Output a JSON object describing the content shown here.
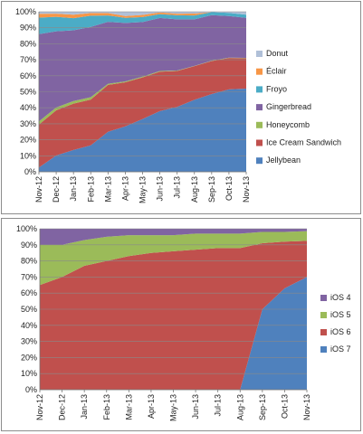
{
  "chart_data": [
    {
      "type": "area",
      "stacked": true,
      "categories": [
        "Nov-12",
        "Dec-12",
        "Jan-13",
        "Feb-13",
        "Mar-13",
        "Apr-13",
        "May-13",
        "Jun-13",
        "Jul-13",
        "Aug-13",
        "Sep-13",
        "Oct-13",
        "Nov-13"
      ],
      "ylim": [
        0,
        100
      ],
      "yticks": [
        "0%",
        "10%",
        "20%",
        "30%",
        "40%",
        "50%",
        "60%",
        "70%",
        "80%",
        "90%",
        "100%"
      ],
      "grid": true,
      "legend": "right",
      "series": [
        {
          "name": "Jellybean",
          "color": "#4f81bd",
          "values": [
            2.7,
            10.2,
            13.6,
            16.5,
            25.0,
            28.4,
            33.0,
            37.9,
            40.5,
            45.0,
            48.6,
            51.5,
            52.0
          ]
        },
        {
          "name": "Ice Cream Sandwich",
          "color": "#c0504d",
          "values": [
            26.8,
            28.2,
            29.0,
            28.6,
            29.3,
            27.5,
            26.0,
            24.7,
            22.5,
            21.0,
            20.6,
            19.6,
            19.0
          ]
        },
        {
          "name": "Honeycomb",
          "color": "#9bbb59",
          "values": [
            2.0,
            1.8,
            1.6,
            1.5,
            0.7,
            0.6,
            0.5,
            0.4,
            0.3,
            0.2,
            0.2,
            0.2,
            0.2
          ]
        },
        {
          "name": "Gingerbread",
          "color": "#8064a2",
          "values": [
            54.5,
            47.6,
            44.2,
            43.9,
            38.7,
            36.5,
            34.1,
            33.1,
            32.0,
            29.1,
            28.5,
            26.0,
            25.0
          ]
        },
        {
          "name": "Froyo",
          "color": "#4bacc6",
          "values": [
            10.3,
            9.0,
            7.6,
            7.0,
            4.0,
            3.2,
            3.1,
            2.4,
            2.5,
            2.4,
            1.9,
            2.0,
            2.0
          ]
        },
        {
          "name": "Éclair",
          "color": "#f79646",
          "values": [
            2.4,
            2.0,
            2.2,
            1.7,
            1.5,
            1.1,
            1.3,
            1.1,
            1.0,
            1.2,
            0.0,
            0.0,
            0.0
          ]
        },
        {
          "name": "Donut",
          "color": "#b0c0d8",
          "values": [
            1.3,
            1.2,
            1.8,
            0.8,
            0.8,
            2.7,
            2.0,
            0.4,
            1.2,
            1.1,
            0.2,
            0.7,
            1.8
          ]
        }
      ]
    },
    {
      "type": "area",
      "stacked": true,
      "categories": [
        "Nov-12",
        "Dec-12",
        "Jan-13",
        "Feb-13",
        "Mar-13",
        "Apr-13",
        "May-13",
        "Jun-13",
        "Jul-13",
        "Aug-13",
        "Sep-13",
        "Oct-13",
        "Nov-13"
      ],
      "ylim": [
        0,
        100
      ],
      "yticks": [
        "0%",
        "10%",
        "20%",
        "30%",
        "40%",
        "50%",
        "60%",
        "70%",
        "80%",
        "90%",
        "100%"
      ],
      "grid": true,
      "legend": "right",
      "series": [
        {
          "name": "iOS 7",
          "color": "#4f81bd",
          "values": [
            0,
            0,
            0,
            0,
            0,
            0,
            0,
            0,
            0,
            0,
            50,
            63,
            70
          ]
        },
        {
          "name": "iOS 6",
          "color": "#c0504d",
          "values": [
            65,
            70,
            77,
            80,
            83,
            85,
            86,
            87,
            88,
            88,
            41,
            29,
            22.5
          ]
        },
        {
          "name": "iOS 5",
          "color": "#9bbb59",
          "values": [
            25,
            20,
            16,
            15,
            13,
            11,
            10,
            10,
            9,
            9,
            7,
            6,
            6
          ]
        },
        {
          "name": "iOS 4",
          "color": "#8064a2",
          "values": [
            10,
            10,
            7,
            5,
            4,
            4,
            4,
            3,
            3,
            3,
            2,
            2,
            1.5
          ]
        }
      ]
    }
  ]
}
